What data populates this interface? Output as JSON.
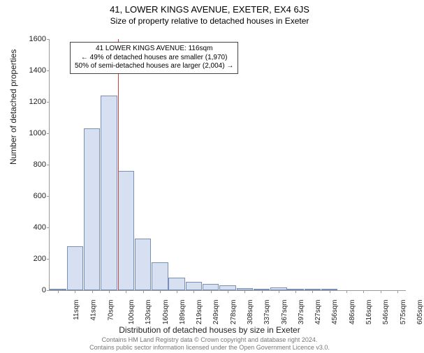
{
  "title": "41, LOWER KINGS AVENUE, EXETER, EX4 6JS",
  "subtitle": "Size of property relative to detached houses in Exeter",
  "ylabel": "Number of detached properties",
  "xlabel": "Distribution of detached houses by size in Exeter",
  "footer_line1": "Contains HM Land Registry data © Crown copyright and database right 2024.",
  "footer_line2": "Contains public sector information licensed under the Open Government Licence v3.0.",
  "annotation": {
    "line1": "41 LOWER KINGS AVENUE: 116sqm",
    "line2": "← 49% of detached houses are smaller (1,970)",
    "line3": "50% of semi-detached houses are larger (2,004) →"
  },
  "chart": {
    "type": "histogram",
    "ylim": [
      0,
      1600
    ],
    "ytick_step": 200,
    "bar_fill": "#d6e0f0",
    "bar_stroke": "#7a8fb8",
    "highlight_color": "#d04040",
    "highlight_x_index": 3.55,
    "background": "#ffffff",
    "text_color": "#222222",
    "axis_color": "#999999",
    "title_fontsize": 13,
    "subtitle_fontsize": 12,
    "label_fontsize": 12,
    "tick_fontsize": 11,
    "xtick_fontsize": 10,
    "annotation_fontsize": 10,
    "categories": [
      "11sqm",
      "41sqm",
      "70sqm",
      "100sqm",
      "130sqm",
      "160sqm",
      "189sqm",
      "219sqm",
      "249sqm",
      "278sqm",
      "308sqm",
      "337sqm",
      "367sqm",
      "397sqm",
      "427sqm",
      "456sqm",
      "486sqm",
      "516sqm",
      "546sqm",
      "575sqm",
      "605sqm"
    ],
    "values": [
      10,
      280,
      1030,
      1240,
      760,
      330,
      180,
      80,
      55,
      40,
      30,
      15,
      8,
      20,
      5,
      5,
      3,
      0,
      0,
      0,
      0
    ]
  }
}
